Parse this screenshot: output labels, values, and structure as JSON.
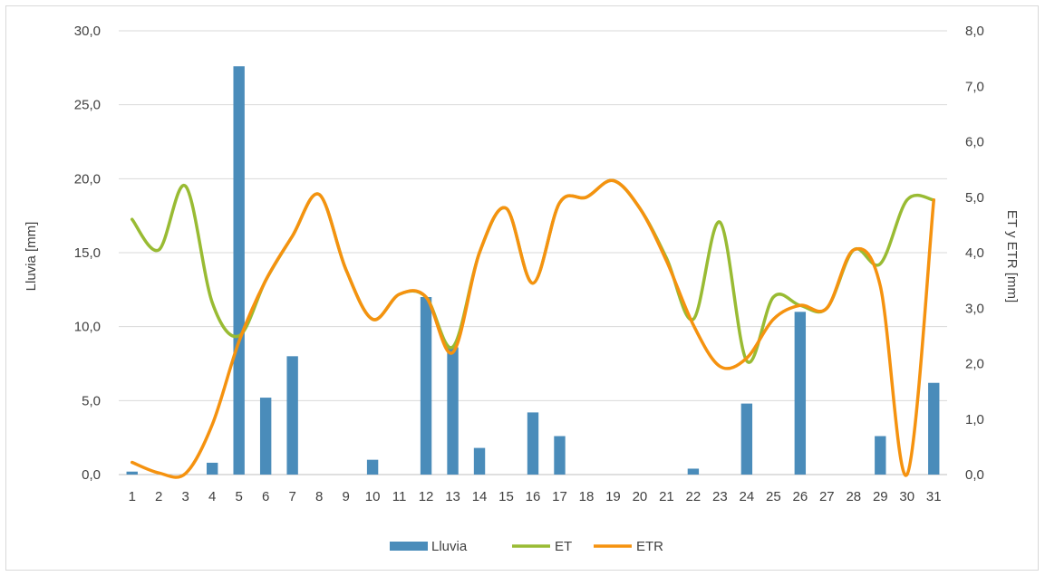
{
  "chart_data": {
    "type": "bar",
    "x": [
      1,
      2,
      3,
      4,
      5,
      6,
      7,
      8,
      9,
      10,
      11,
      12,
      13,
      14,
      15,
      16,
      17,
      18,
      19,
      20,
      21,
      22,
      23,
      24,
      25,
      26,
      27,
      28,
      29,
      30,
      31
    ],
    "x_tick_labels": [
      "1",
      "2",
      "3",
      "4",
      "5",
      "6",
      "7",
      "8",
      "9",
      "10",
      "11",
      "12",
      "13",
      "14",
      "15",
      "16",
      "17",
      "18",
      "19",
      "20",
      "21",
      "22",
      "23",
      "24",
      "25",
      "26",
      "27",
      "28",
      "29",
      "30",
      "31"
    ],
    "y_left": {
      "label": "Lluvia [mm]",
      "ylim": [
        0,
        30
      ],
      "ticks": [
        0,
        5,
        10,
        15,
        20,
        25,
        30
      ],
      "tick_labels": [
        "0,0",
        "5,0",
        "10,0",
        "15,0",
        "20,0",
        "25,0",
        "30,0"
      ]
    },
    "y_right": {
      "label": "ET y ETR [mm]",
      "ylim": [
        0,
        8
      ],
      "ticks": [
        0,
        1,
        2,
        3,
        4,
        5,
        6,
        7,
        8
      ],
      "tick_labels": [
        "0,0",
        "1,0",
        "2,0",
        "3,0",
        "4,0",
        "5,0",
        "6,0",
        "7,0",
        "8,0"
      ]
    },
    "series": [
      {
        "name": "Lluvia",
        "kind": "bar",
        "axis": "left",
        "color": "#4a8cba",
        "values": [
          0.2,
          0,
          0,
          0.8,
          27.6,
          5.2,
          8.0,
          0,
          0,
          1.0,
          0,
          12.0,
          8.6,
          1.8,
          0,
          4.2,
          2.6,
          0,
          0,
          0,
          0,
          0.4,
          0,
          4.8,
          0,
          11.0,
          0,
          0,
          2.6,
          0,
          6.2
        ]
      },
      {
        "name": "ET",
        "kind": "line",
        "axis": "right",
        "color": "#99bb33",
        "values": [
          4.6,
          4.05,
          5.2,
          3.1,
          2.5,
          3.5,
          4.3,
          5.05,
          3.7,
          2.8,
          3.25,
          3.2,
          2.3,
          4.0,
          4.8,
          3.45,
          4.9,
          5.0,
          5.3,
          4.8,
          3.9,
          2.8,
          4.55,
          2.05,
          3.2,
          3.05,
          3.0,
          4.05,
          3.8,
          4.95,
          4.95
        ]
      },
      {
        "name": "ETR",
        "kind": "line",
        "axis": "right",
        "color": "#f5920f",
        "values": [
          0.22,
          0.03,
          0.02,
          0.9,
          2.4,
          3.5,
          4.3,
          5.05,
          3.7,
          2.8,
          3.25,
          3.2,
          2.2,
          4.0,
          4.8,
          3.45,
          4.9,
          5.0,
          5.3,
          4.8,
          3.85,
          2.7,
          1.95,
          2.1,
          2.8,
          3.05,
          3.0,
          4.05,
          3.4,
          0.0,
          4.95
        ]
      }
    ],
    "grid": true,
    "legend_position": "bottom"
  }
}
